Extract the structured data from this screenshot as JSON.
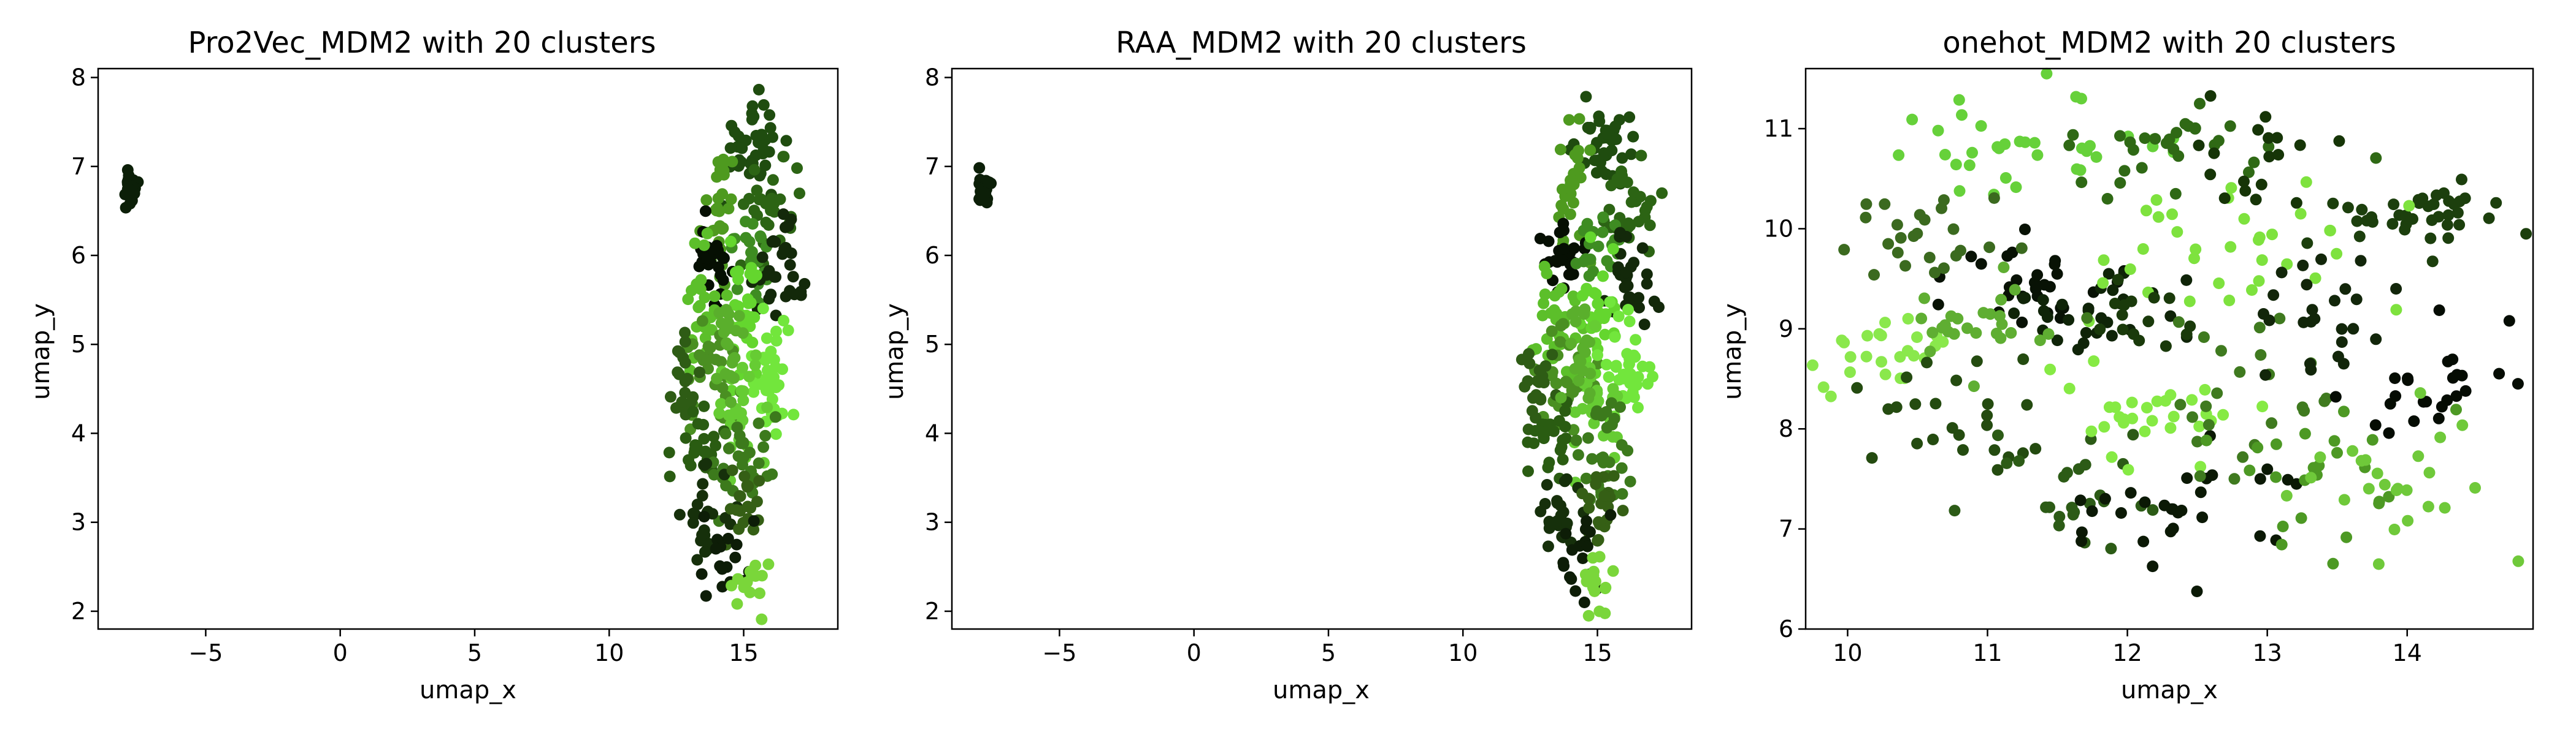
{
  "chart_data": [
    {
      "type": "scatter",
      "title": "Pro2Vec_MDM2 with 20 clusters",
      "xlabel": "umap_x",
      "ylabel": "umap_y",
      "xlim": [
        -9.0,
        18.5
      ],
      "ylim": [
        1.8,
        8.1
      ],
      "xticks": [
        -5,
        0,
        5,
        10,
        15
      ],
      "yticks": [
        2,
        3,
        4,
        5,
        6,
        7,
        8
      ],
      "grid": false,
      "legend": "none",
      "point_color_range": [
        "#0a1a05",
        "#7fe33a"
      ],
      "groups": [
        {
          "cx": -7.8,
          "cy": 6.75,
          "sx": 0.15,
          "sy": 0.12,
          "n": 22,
          "color": "#0c1f08"
        },
        {
          "cx": 15.3,
          "cy": 7.25,
          "sx": 0.55,
          "sy": 0.25,
          "n": 40,
          "color": "#1f4c0f"
        },
        {
          "cx": 14.1,
          "cy": 6.6,
          "sx": 0.35,
          "sy": 0.35,
          "n": 30,
          "color": "#4e9a1f"
        },
        {
          "cx": 16.2,
          "cy": 6.5,
          "sx": 0.5,
          "sy": 0.3,
          "n": 30,
          "color": "#2c6414"
        },
        {
          "cx": 13.8,
          "cy": 5.95,
          "sx": 0.4,
          "sy": 0.2,
          "n": 25,
          "color": "#060f03"
        },
        {
          "cx": 15.2,
          "cy": 6.1,
          "sx": 0.4,
          "sy": 0.2,
          "n": 20,
          "color": "#3e8c22"
        },
        {
          "cx": 16.3,
          "cy": 5.7,
          "sx": 0.45,
          "sy": 0.3,
          "n": 30,
          "color": "#13290a"
        },
        {
          "cx": 13.5,
          "cy": 5.35,
          "sx": 0.4,
          "sy": 0.35,
          "n": 30,
          "color": "#5cbf2a"
        },
        {
          "cx": 15.0,
          "cy": 5.3,
          "sx": 0.35,
          "sy": 0.4,
          "n": 30,
          "color": "#64d62e"
        },
        {
          "cx": 13.8,
          "cy": 4.6,
          "sx": 0.5,
          "sy": 0.3,
          "n": 30,
          "color": "#4a8f22"
        },
        {
          "cx": 12.8,
          "cy": 4.6,
          "sx": 0.3,
          "sy": 0.3,
          "n": 20,
          "color": "#2e5c15"
        },
        {
          "cx": 16.1,
          "cy": 4.7,
          "sx": 0.5,
          "sy": 0.35,
          "n": 35,
          "color": "#72e63c"
        },
        {
          "cx": 14.9,
          "cy": 4.25,
          "sx": 0.45,
          "sy": 0.3,
          "n": 25,
          "color": "#66cc33"
        },
        {
          "cx": 13.3,
          "cy": 3.85,
          "sx": 0.45,
          "sy": 0.25,
          "n": 25,
          "color": "#2a5c12"
        },
        {
          "cx": 15.1,
          "cy": 3.7,
          "sx": 0.55,
          "sy": 0.3,
          "n": 30,
          "color": "#3c7a1c"
        },
        {
          "cx": 13.6,
          "cy": 3.1,
          "sx": 0.45,
          "sy": 0.25,
          "n": 25,
          "color": "#16300b"
        },
        {
          "cx": 15.0,
          "cy": 3.15,
          "sx": 0.4,
          "sy": 0.25,
          "n": 20,
          "color": "#355f15"
        },
        {
          "cx": 14.4,
          "cy": 2.6,
          "sx": 0.45,
          "sy": 0.25,
          "n": 18,
          "color": "#0d1d07"
        },
        {
          "cx": 15.1,
          "cy": 2.35,
          "sx": 0.35,
          "sy": 0.2,
          "n": 15,
          "color": "#7ad63a"
        },
        {
          "cx": 14.5,
          "cy": 5.0,
          "sx": 0.3,
          "sy": 0.3,
          "n": 20,
          "color": "#5aaf2c"
        }
      ]
    },
    {
      "type": "scatter",
      "title": "RAA_MDM2 with 20 clusters",
      "xlabel": "umap_x",
      "ylabel": "umap_y",
      "xlim": [
        -9.0,
        18.5
      ],
      "ylim": [
        1.8,
        8.1
      ],
      "xticks": [
        -5,
        0,
        5,
        10,
        15
      ],
      "yticks": [
        2,
        3,
        4,
        5,
        6,
        7,
        8
      ],
      "grid": false,
      "legend": "none",
      "point_color_range": [
        "#0a1a05",
        "#7fe33a"
      ],
      "groups": [
        {
          "cx": -7.8,
          "cy": 6.75,
          "sx": 0.15,
          "sy": 0.12,
          "n": 22,
          "color": "#0c1f08"
        },
        {
          "cx": 15.3,
          "cy": 7.25,
          "sx": 0.55,
          "sy": 0.25,
          "n": 40,
          "color": "#1f4c0f"
        },
        {
          "cx": 14.1,
          "cy": 6.6,
          "sx": 0.35,
          "sy": 0.35,
          "n": 30,
          "color": "#4e9a1f"
        },
        {
          "cx": 16.2,
          "cy": 6.5,
          "sx": 0.5,
          "sy": 0.3,
          "n": 30,
          "color": "#2c6414"
        },
        {
          "cx": 13.8,
          "cy": 5.95,
          "sx": 0.4,
          "sy": 0.2,
          "n": 25,
          "color": "#060f03"
        },
        {
          "cx": 15.2,
          "cy": 6.1,
          "sx": 0.4,
          "sy": 0.2,
          "n": 20,
          "color": "#3e8c22"
        },
        {
          "cx": 16.3,
          "cy": 5.7,
          "sx": 0.45,
          "sy": 0.3,
          "n": 30,
          "color": "#13290a"
        },
        {
          "cx": 13.5,
          "cy": 5.35,
          "sx": 0.4,
          "sy": 0.35,
          "n": 30,
          "color": "#5cbf2a"
        },
        {
          "cx": 15.0,
          "cy": 5.3,
          "sx": 0.35,
          "sy": 0.4,
          "n": 30,
          "color": "#64d62e"
        },
        {
          "cx": 13.8,
          "cy": 4.6,
          "sx": 0.5,
          "sy": 0.3,
          "n": 30,
          "color": "#4a8f22"
        },
        {
          "cx": 12.8,
          "cy": 4.6,
          "sx": 0.3,
          "sy": 0.3,
          "n": 20,
          "color": "#2e5c15"
        },
        {
          "cx": 16.1,
          "cy": 4.7,
          "sx": 0.5,
          "sy": 0.35,
          "n": 35,
          "color": "#72e63c"
        },
        {
          "cx": 14.9,
          "cy": 4.25,
          "sx": 0.45,
          "sy": 0.3,
          "n": 25,
          "color": "#66cc33"
        },
        {
          "cx": 13.3,
          "cy": 3.85,
          "sx": 0.45,
          "sy": 0.25,
          "n": 25,
          "color": "#2a5c12"
        },
        {
          "cx": 15.1,
          "cy": 3.7,
          "sx": 0.55,
          "sy": 0.3,
          "n": 30,
          "color": "#3c7a1c"
        },
        {
          "cx": 13.6,
          "cy": 3.1,
          "sx": 0.45,
          "sy": 0.25,
          "n": 25,
          "color": "#16300b"
        },
        {
          "cx": 15.0,
          "cy": 3.15,
          "sx": 0.4,
          "sy": 0.25,
          "n": 20,
          "color": "#355f15"
        },
        {
          "cx": 14.4,
          "cy": 2.6,
          "sx": 0.45,
          "sy": 0.25,
          "n": 18,
          "color": "#0d1d07"
        },
        {
          "cx": 15.1,
          "cy": 2.35,
          "sx": 0.35,
          "sy": 0.2,
          "n": 15,
          "color": "#7ad63a"
        },
        {
          "cx": 14.5,
          "cy": 5.0,
          "sx": 0.3,
          "sy": 0.3,
          "n": 20,
          "color": "#5aaf2c"
        }
      ]
    },
    {
      "type": "scatter",
      "title": "onehot_MDM2 with 20 clusters",
      "xlabel": "umap_x",
      "ylabel": "umap_y",
      "xlim": [
        9.7,
        14.9
      ],
      "ylim": [
        6.0,
        11.6
      ],
      "xticks": [
        10,
        11,
        12,
        13,
        14
      ],
      "yticks": [
        6,
        7,
        8,
        9,
        10,
        11
      ],
      "grid": false,
      "legend": "none",
      "point_color_range": [
        "#0a1a05",
        "#7fe33a"
      ],
      "groups": [
        {
          "cx": 14.05,
          "cy": 10.1,
          "sx": 0.3,
          "sy": 0.15,
          "n": 40,
          "color": "#1c3f0d"
        },
        {
          "cx": 11.2,
          "cy": 9.45,
          "sx": 0.3,
          "sy": 0.2,
          "n": 30,
          "color": "#081205"
        },
        {
          "cx": 11.75,
          "cy": 9.15,
          "sx": 0.3,
          "sy": 0.2,
          "n": 30,
          "color": "#0f2408"
        },
        {
          "cx": 12.6,
          "cy": 9.75,
          "sx": 0.5,
          "sy": 0.4,
          "n": 35,
          "color": "#7ee23e"
        },
        {
          "cx": 11.3,
          "cy": 10.75,
          "sx": 0.5,
          "sy": 0.3,
          "n": 35,
          "color": "#66d13a"
        },
        {
          "cx": 12.3,
          "cy": 10.8,
          "sx": 0.5,
          "sy": 0.3,
          "n": 30,
          "color": "#2f6915"
        },
        {
          "cx": 12.9,
          "cy": 10.8,
          "sx": 0.3,
          "sy": 0.25,
          "n": 18,
          "color": "#163507"
        },
        {
          "cx": 10.5,
          "cy": 9.9,
          "sx": 0.35,
          "sy": 0.3,
          "n": 25,
          "color": "#3b6a1f"
        },
        {
          "cx": 10.25,
          "cy": 8.7,
          "sx": 0.25,
          "sy": 0.3,
          "n": 25,
          "color": "#8ae84c"
        },
        {
          "cx": 10.9,
          "cy": 9.0,
          "sx": 0.3,
          "sy": 0.25,
          "n": 25,
          "color": "#5fae32"
        },
        {
          "cx": 10.8,
          "cy": 8.0,
          "sx": 0.35,
          "sy": 0.35,
          "n": 25,
          "color": "#244b10"
        },
        {
          "cx": 11.6,
          "cy": 7.4,
          "sx": 0.4,
          "sy": 0.4,
          "n": 25,
          "color": "#2c5b16"
        },
        {
          "cx": 12.1,
          "cy": 8.2,
          "sx": 0.4,
          "sy": 0.3,
          "n": 30,
          "color": "#86ea44"
        },
        {
          "cx": 12.4,
          "cy": 7.15,
          "sx": 0.45,
          "sy": 0.35,
          "n": 30,
          "color": "#0b1905"
        },
        {
          "cx": 12.85,
          "cy": 8.4,
          "sx": 0.35,
          "sy": 0.4,
          "n": 25,
          "color": "#3f7a1f"
        },
        {
          "cx": 13.3,
          "cy": 7.6,
          "sx": 0.4,
          "sy": 0.4,
          "n": 25,
          "color": "#4d9924"
        },
        {
          "cx": 13.3,
          "cy": 9.2,
          "sx": 0.3,
          "sy": 0.3,
          "n": 25,
          "color": "#12260a"
        },
        {
          "cx": 14.2,
          "cy": 8.5,
          "sx": 0.35,
          "sy": 0.35,
          "n": 25,
          "color": "#050c03"
        },
        {
          "cx": 14.0,
          "cy": 7.5,
          "sx": 0.4,
          "sy": 0.4,
          "n": 25,
          "color": "#6fc93a"
        },
        {
          "cx": 12.1,
          "cy": 9.1,
          "sx": 0.25,
          "sy": 0.2,
          "n": 15,
          "color": "#1a3a0b"
        }
      ]
    }
  ]
}
